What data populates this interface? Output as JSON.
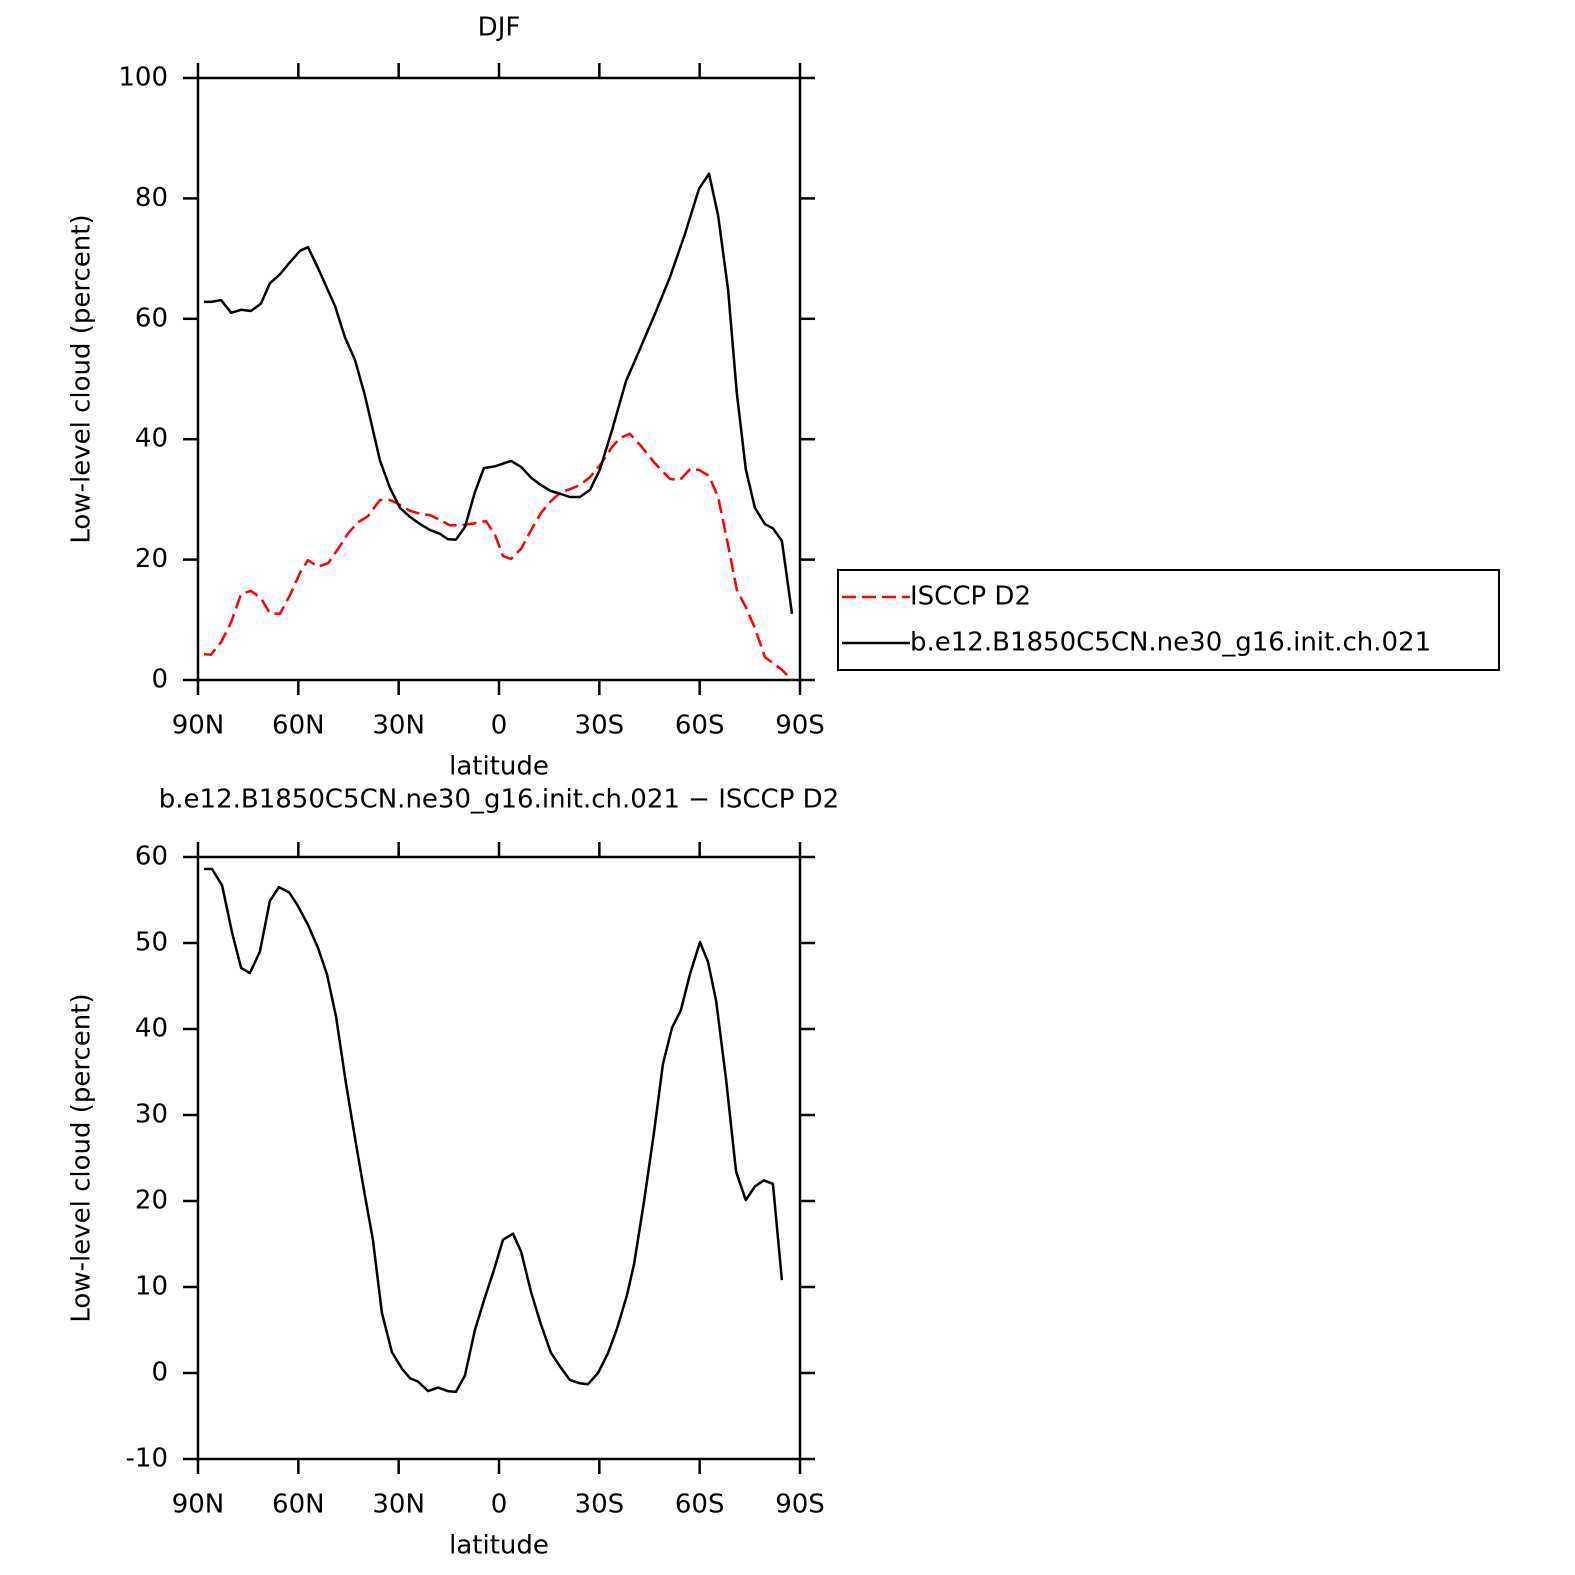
{
  "chart_data": [
    {
      "type": "line",
      "title": "DJF",
      "x_label": "latitude",
      "y_label": "Low-level cloud (percent)",
      "xlim": [
        90,
        -90
      ],
      "xticks": [
        {
          "value": 90,
          "label": "90N"
        },
        {
          "value": 60,
          "label": "60N"
        },
        {
          "value": 30,
          "label": "30N"
        },
        0,
        {
          "value": -30,
          "label": "30S"
        },
        {
          "value": -60,
          "label": "60S"
        },
        {
          "value": -90,
          "label": "90S"
        }
      ],
      "ylim": [
        0,
        100
      ],
      "yticks": [
        0,
        20,
        40,
        60,
        80,
        100
      ],
      "legend": "right",
      "series": [
        {
          "name": "ISCCP D2",
          "color": "#ff0000",
          "dashed": true,
          "x": [
            88.2,
            86.1,
            83.1,
            80.1,
            77.1,
            74.2,
            71.2,
            68.5,
            65.5,
            62.5,
            59.5,
            57.1,
            54.1,
            51.1,
            48.1,
            45.2,
            42.2,
            39.2,
            35.6,
            32.6,
            29.6,
            26.6,
            23.6,
            20.6,
            17.7,
            14.7,
            11.7,
            8.7,
            3.9,
            1.2,
            -1.2,
            -3.6,
            -6.6,
            -9.6,
            -12.5,
            -15.5,
            -18.5,
            -21.2,
            -24.2,
            -27.2,
            -30.2,
            -33.8,
            -36.2,
            -39.1,
            -42.4,
            -46.6,
            -51.1,
            -54.1,
            -57.1,
            -59.8,
            -62.8,
            -65.5,
            -68.5,
            -71.1,
            -73.8,
            -76.5,
            -79.5,
            -81.9,
            -84.6,
            -87.6
          ],
          "values": [
            4.3,
            4.2,
            6.3,
            9.6,
            14.3,
            14.8,
            13.6,
            11.1,
            11.0,
            14.1,
            17.8,
            19.9,
            18.8,
            19.4,
            21.8,
            24.3,
            26.2,
            27.2,
            29.9,
            29.9,
            29.1,
            28.1,
            27.6,
            27.4,
            26.6,
            25.7,
            25.7,
            25.9,
            26.4,
            24.1,
            20.6,
            20.1,
            21.8,
            24.9,
            27.7,
            29.7,
            31.2,
            31.7,
            32.4,
            33.7,
            35.7,
            38.7,
            40.2,
            40.9,
            38.9,
            36.0,
            33.4,
            33.2,
            35.0,
            34.9,
            33.9,
            30.4,
            22.4,
            15.0,
            12.1,
            8.6,
            3.8,
            2.8,
            1.7,
            0.0
          ]
        },
        {
          "name": "b.e12.B1850C5CN.ne30_g16.init.ch.021",
          "color": "#000000",
          "dashed": false,
          "x": [
            88.2,
            86.1,
            83.1,
            80.1,
            77.1,
            74.2,
            71.2,
            68.5,
            65.5,
            62.5,
            59.5,
            57.1,
            54.1,
            49.0,
            46.1,
            43.1,
            40.1,
            35.6,
            32.6,
            29.6,
            26.6,
            23.6,
            20.6,
            17.7,
            15.3,
            12.9,
            10.2,
            7.2,
            4.5,
            1.2,
            -3.6,
            -6.6,
            -9.6,
            -12.5,
            -15.5,
            -18.5,
            -21.2,
            -24.2,
            -27.2,
            -30.2,
            -33.8,
            -38.0,
            -42.4,
            -46.6,
            -51.1,
            -55.6,
            -59.8,
            -62.8,
            -65.5,
            -68.5,
            -71.1,
            -73.8,
            -76.5,
            -79.5,
            -81.9,
            -84.6,
            -87.6
          ],
          "values": [
            62.8,
            62.8,
            63.1,
            61.0,
            61.5,
            61.3,
            62.5,
            65.9,
            67.4,
            69.4,
            71.3,
            71.9,
            68.4,
            62.1,
            57.0,
            53.2,
            47.3,
            36.5,
            31.9,
            28.6,
            27.1,
            25.9,
            24.9,
            24.3,
            23.4,
            23.3,
            25.4,
            31.2,
            35.2,
            35.5,
            36.4,
            35.4,
            33.6,
            32.4,
            31.4,
            30.9,
            30.4,
            30.4,
            31.6,
            35.0,
            41.5,
            49.7,
            55.3,
            60.8,
            66.9,
            74.1,
            81.6,
            84.1,
            77.2,
            64.8,
            47.7,
            35.0,
            28.6,
            25.9,
            25.2,
            23.1,
            11.0
          ]
        }
      ]
    },
    {
      "type": "line",
      "title": "b.e12.B1850C5CN.ne30_g16.init.ch.021 − ISCCP D2",
      "x_label": "latitude",
      "y_label": "Low-level cloud (percent)",
      "xlim": [
        90,
        -90
      ],
      "xticks": [
        {
          "value": 90,
          "label": "90N"
        },
        {
          "value": 60,
          "label": "60N"
        },
        {
          "value": 30,
          "label": "30N"
        },
        0,
        {
          "value": -30,
          "label": "30S"
        },
        {
          "value": -60,
          "label": "60S"
        },
        {
          "value": -90,
          "label": "90S"
        }
      ],
      "ylim": [
        -10,
        60
      ],
      "yticks": [
        -10,
        0,
        10,
        20,
        30,
        40,
        50,
        60
      ],
      "series": [
        {
          "color": "#000000",
          "dashed": false,
          "x": [
            88.2,
            85.8,
            82.8,
            79.8,
            77.1,
            74.5,
            71.5,
            68.5,
            65.8,
            62.8,
            60.4,
            57.1,
            54.1,
            51.4,
            48.7,
            45.8,
            43.1,
            40.4,
            37.7,
            35.0,
            32.0,
            29.0,
            26.6,
            24.2,
            21.2,
            18.2,
            15.3,
            12.9,
            10.2,
            7.2,
            4.2,
            1.5,
            -1.2,
            -4.2,
            -6.6,
            -9.6,
            -12.5,
            -15.5,
            -18.5,
            -21.2,
            -24.2,
            -26.6,
            -29.6,
            -32.6,
            -35.3,
            -38.3,
            -40.4,
            -43.4,
            -46.3,
            -49.0,
            -51.7,
            -54.4,
            -57.1,
            -60.1,
            -62.5,
            -64.9,
            -67.9,
            -70.9,
            -73.8,
            -76.5,
            -79.2,
            -81.9,
            -84.6
          ],
          "values": [
            58.6,
            58.6,
            56.7,
            51.2,
            47.1,
            46.5,
            49.0,
            54.9,
            56.5,
            55.9,
            54.5,
            52.1,
            49.4,
            46.3,
            41.4,
            33.8,
            27.4,
            21.3,
            15.5,
            7.0,
            2.4,
            0.5,
            -0.6,
            -1.0,
            -2.1,
            -1.7,
            -2.1,
            -2.2,
            -0.3,
            5.0,
            8.8,
            12.0,
            15.5,
            16.2,
            14.1,
            9.4,
            5.7,
            2.4,
            0.6,
            -0.8,
            -1.2,
            -1.3,
            0.0,
            2.3,
            5.2,
            9.1,
            12.7,
            20.0,
            27.8,
            35.9,
            40.1,
            42.2,
            46.4,
            50.1,
            47.8,
            43.3,
            34.1,
            23.4,
            20.1,
            21.7,
            22.4,
            22.0,
            10.8
          ]
        }
      ]
    }
  ]
}
